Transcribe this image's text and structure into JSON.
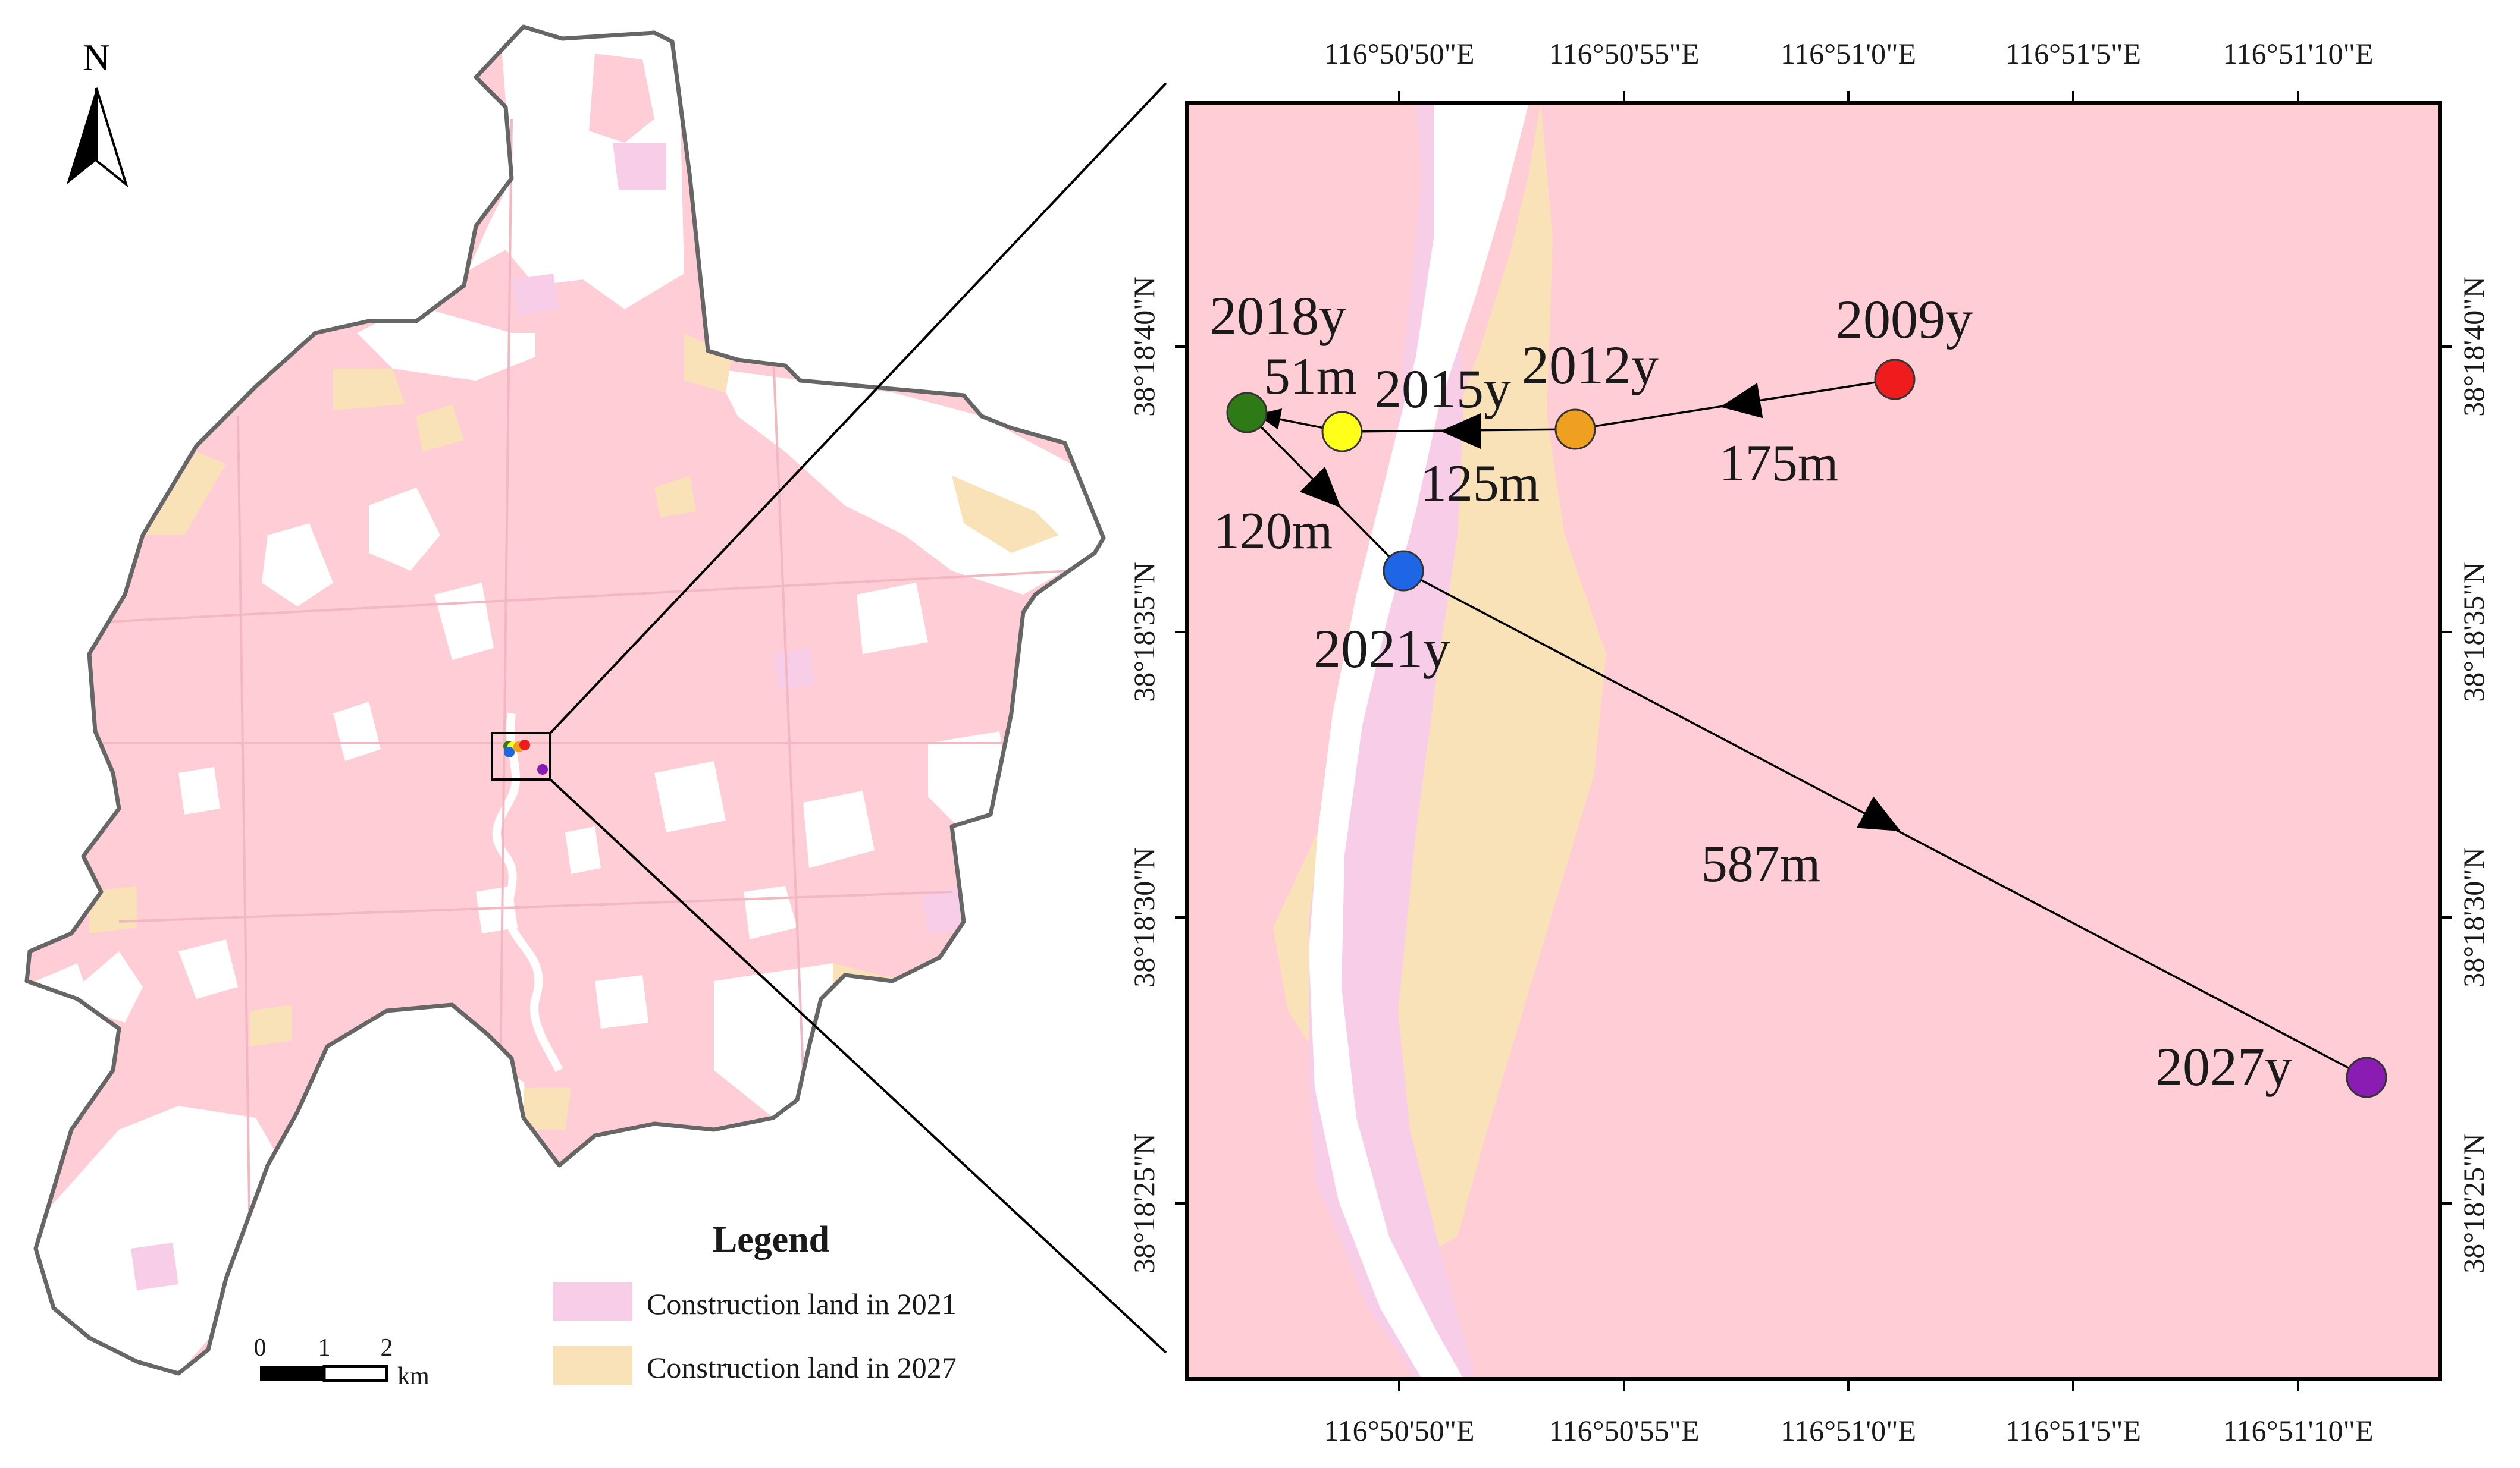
{
  "overview": {
    "north_label": "N",
    "legend": {
      "title": "Legend",
      "items": [
        {
          "label": "Construction land in 2021",
          "color": "#f7cde8"
        },
        {
          "label": "Construction land in 2027",
          "color": "#f9e2b8"
        }
      ]
    },
    "scale_bar": {
      "ticks": [
        "0",
        "1",
        "2"
      ],
      "unit": "km"
    }
  },
  "detail": {
    "top_axis_labels": [
      "116°50'50\"E",
      "116°50'55\"E",
      "116°51'0\"E",
      "116°51'5\"E",
      "116°51'10\"E"
    ],
    "bottom_axis_labels": [
      "116°50'50\"E",
      "116°50'55\"E",
      "116°51'0\"E",
      "116°51'5\"E",
      "116°51'10\"E"
    ],
    "left_axis_labels": [
      "38°18'40\"N",
      "38°18'35\"N",
      "38°18'30\"N",
      "38°18'25\"N"
    ],
    "right_axis_labels": [
      "38°18'40\"N",
      "38°18'35\"N",
      "38°18'30\"N",
      "38°18'25\"N"
    ],
    "centroids": [
      {
        "year": "2009y",
        "color": "#ee1c1c"
      },
      {
        "year": "2012y",
        "color": "#f0a020"
      },
      {
        "year": "2015y",
        "color": "#ffff1a"
      },
      {
        "year": "2018y",
        "color": "#2e7a17"
      },
      {
        "year": "2021y",
        "color": "#1f66e6"
      },
      {
        "year": "2027y",
        "color": "#8a1cb4"
      }
    ],
    "distances": [
      "175m",
      "125m",
      "51m",
      "120m",
      "587m"
    ]
  },
  "colors": {
    "base_pink": "#ffcdd5",
    "land_2021": "#f7cde8",
    "land_2027": "#f9e2b8",
    "boundary": "#666666"
  }
}
